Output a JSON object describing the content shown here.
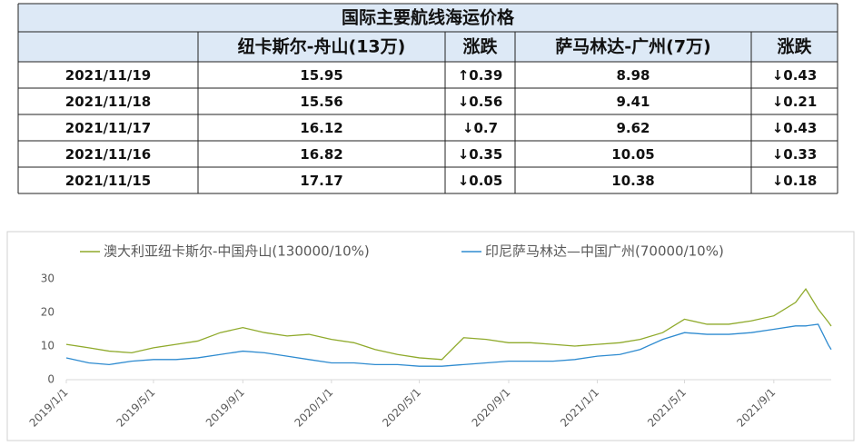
{
  "table": {
    "title": "国际主要航线海运价格",
    "headers": [
      "纽卡斯尔-舟山(13万)",
      "涨跌",
      "萨马林达-广州(7万)",
      "涨跌"
    ],
    "rows": [
      [
        "2021/11/19",
        "15.95",
        "↑0.39",
        "8.98",
        "↓0.43"
      ],
      [
        "2021/11/18",
        "15.56",
        "↓0.56",
        "9.41",
        "↓0.21"
      ],
      [
        "2021/11/17",
        "16.12",
        "↓0.7",
        "9.62",
        "↓0.43"
      ],
      [
        "2021/11/16",
        "16.82",
        "↓0.35",
        "10.05",
        "↓0.33"
      ],
      [
        "2021/11/15",
        "17.17",
        "↓0.05",
        "10.38",
        "↓0.18"
      ]
    ]
  },
  "chart_data": {
    "type": "line",
    "x": [
      "2019/1/1",
      "2019/2/1",
      "2019/3/1",
      "2019/4/1",
      "2019/5/1",
      "2019/6/1",
      "2019/7/1",
      "2019/8/1",
      "2019/9/1",
      "2019/10/1",
      "2019/11/1",
      "2019/12/1",
      "2020/1/1",
      "2020/2/1",
      "2020/3/1",
      "2020/4/1",
      "2020/5/1",
      "2020/6/1",
      "2020/7/1",
      "2020/8/1",
      "2020/9/1",
      "2020/10/1",
      "2020/11/1",
      "2020/12/1",
      "2021/1/1",
      "2021/2/1",
      "2021/3/1",
      "2021/4/1",
      "2021/5/1",
      "2021/6/1",
      "2021/7/1",
      "2021/8/1",
      "2021/9/1",
      "2021/10/1",
      "2021/10/15",
      "2021/11/1",
      "2021/11/15",
      "2021/11/19"
    ],
    "series": [
      {
        "name": "澳大利亚纽卡斯尔-中国舟山(130000/10%)",
        "color": "#8faa2b",
        "values": [
          10.5,
          9.5,
          8.5,
          8,
          9.5,
          10.5,
          11.5,
          14,
          15.5,
          14,
          13,
          13.5,
          12,
          11,
          9,
          7.5,
          6.5,
          6,
          12.5,
          12,
          11,
          11,
          10.5,
          10,
          10.5,
          11,
          12,
          14,
          18,
          16.5,
          16.5,
          17.5,
          19,
          23,
          27,
          21,
          17.17,
          15.95
        ]
      },
      {
        "name": "印尼萨马林达—中国广州(70000/10%)",
        "color": "#2e8bd0",
        "values": [
          6.5,
          5,
          4.5,
          5.5,
          6,
          6,
          6.5,
          7.5,
          8.5,
          8,
          7,
          6,
          5,
          5,
          4.5,
          4.5,
          4,
          4,
          4.5,
          5,
          5.5,
          5.5,
          5.5,
          6,
          7,
          7.5,
          9,
          12,
          14,
          13.5,
          13.5,
          14,
          15,
          16,
          16,
          16.5,
          10.38,
          8.98
        ]
      }
    ],
    "xlim": [
      "2019/1/1",
      "2021/11/19"
    ],
    "xticks": [
      "2019/1/1",
      "2019/5/1",
      "2019/9/1",
      "2020/1/1",
      "2020/5/1",
      "2020/9/1",
      "2021/1/1",
      "2021/5/1",
      "2021/9/1"
    ],
    "ylim": [
      0,
      30
    ],
    "yticks": [
      0,
      10,
      20,
      30
    ],
    "grid": false
  }
}
